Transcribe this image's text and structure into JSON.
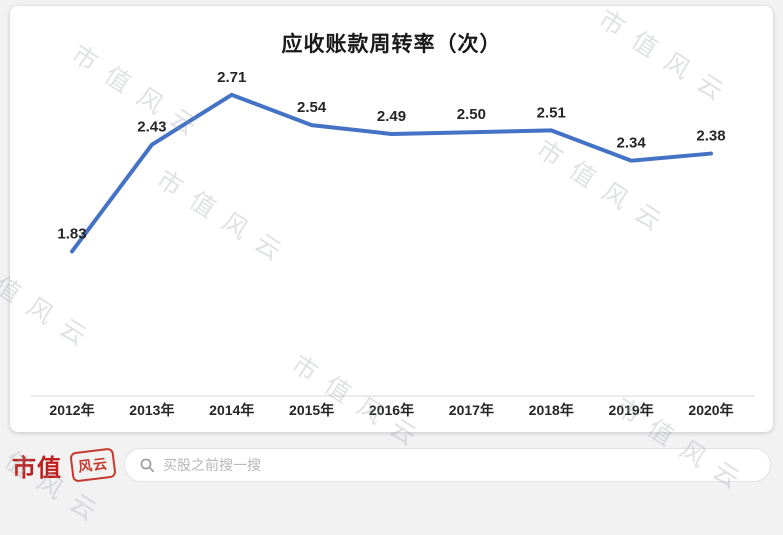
{
  "watermark": {
    "text": "市值风云"
  },
  "chart_data": {
    "type": "line",
    "title": "应收账款周转率（次）",
    "categories": [
      "2012年",
      "2013年",
      "2014年",
      "2015年",
      "2016年",
      "2017年",
      "2018年",
      "2019年",
      "2020年"
    ],
    "values": [
      1.83,
      2.43,
      2.71,
      2.54,
      2.49,
      2.5,
      2.51,
      2.34,
      2.38
    ],
    "xlabel": "",
    "ylabel": "",
    "ylim": [
      1.6,
      2.9
    ],
    "grid": false,
    "legend": "none",
    "series_color": "#4472c4",
    "axis_color": "#d9d9d9",
    "label_color": "#262626"
  },
  "footer": {
    "brand": "市值",
    "seal": "风云",
    "search_placeholder": "买股之前搜一搜",
    "brand_color": "#bf1e1e"
  }
}
